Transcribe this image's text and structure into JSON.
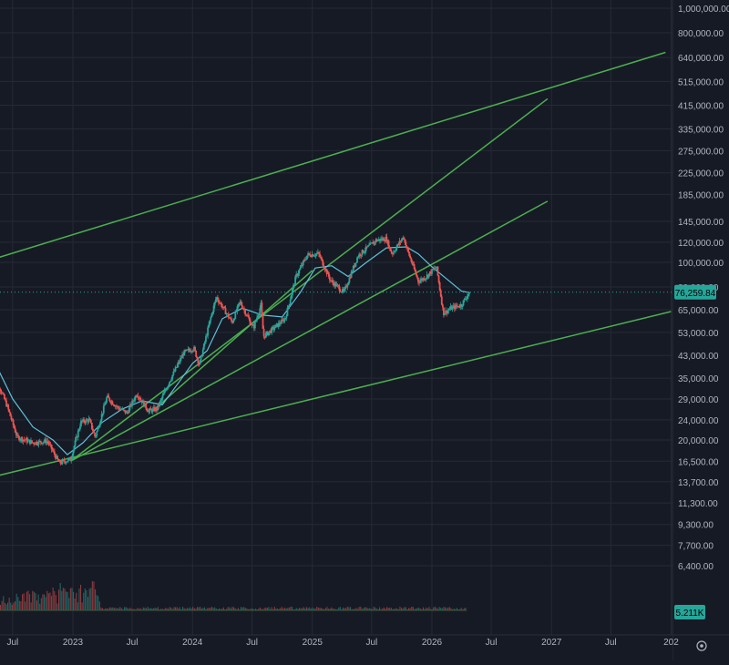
{
  "chart_data": {
    "type": "line",
    "scale": "log",
    "grid": true,
    "price_axis_labels": [
      "1,000,000.00",
      "800,000.00",
      "640,000.00",
      "515,000.00",
      "415,000.00",
      "335,000.00",
      "275,000.00",
      "225,000.00",
      "185,000.00",
      "145,000.00",
      "120,000.00",
      "100,000.00",
      "80,000.00",
      "65,000.00",
      "53,000.00",
      "43,000.00",
      "35,000.00",
      "29,000.00",
      "24,000.00",
      "20,000.00",
      "16,500.00",
      "13,700.00",
      "11,300.00",
      "9,300.00",
      "7,700.00",
      "6,400.00"
    ],
    "price_axis_values": [
      1000000,
      800000,
      640000,
      515000,
      415000,
      335000,
      275000,
      225000,
      185000,
      145000,
      120000,
      100000,
      80000,
      65000,
      53000,
      43000,
      35000,
      29000,
      24000,
      20000,
      16500,
      13700,
      11300,
      9300,
      7700,
      6400
    ],
    "time_axis_labels": [
      "Jul",
      "2023",
      "Jul",
      "2024",
      "Jul",
      "2025",
      "Jul",
      "2026",
      "Jul",
      "2027",
      "Jul",
      "202"
    ],
    "time_axis_dates": [
      "2022-07-01",
      "2023-01-01",
      "2023-07-01",
      "2024-01-01",
      "2024-07-01",
      "2025-01-01",
      "2025-07-01",
      "2026-01-01",
      "2026-07-01",
      "2027-01-01",
      "2027-07-01",
      "2028-01-01"
    ],
    "last_price_label": "76,259.84",
    "last_price": 76259.84,
    "volume_label": "5.211K",
    "colors": {
      "background": "#161a25",
      "grid": "#262a35",
      "candle_up": "#26a69a",
      "candle_down": "#ef5350",
      "moving_average": "#5ec1d9",
      "trendline": "#4caf50",
      "price_tag": "#26a69a",
      "axis_text": "#b2b5be"
    },
    "price_path": [
      [
        "2022-05-01",
        38000
      ],
      [
        "2022-06-15",
        27000
      ],
      [
        "2022-07-15",
        20500
      ],
      [
        "2022-09-01",
        19500
      ],
      [
        "2022-10-15",
        19800
      ],
      [
        "2022-11-20",
        16200
      ],
      [
        "2022-12-25",
        16800
      ],
      [
        "2023-01-25",
        23500
      ],
      [
        "2023-02-20",
        24000
      ],
      [
        "2023-03-10",
        20500
      ],
      [
        "2023-04-15",
        29500
      ],
      [
        "2023-05-15",
        27000
      ],
      [
        "2023-06-15",
        25500
      ],
      [
        "2023-07-15",
        30500
      ],
      [
        "2023-08-20",
        26000
      ],
      [
        "2023-09-15",
        26500
      ],
      [
        "2023-10-25",
        34500
      ],
      [
        "2023-12-05",
        44000
      ],
      [
        "2024-01-05",
        46000
      ],
      [
        "2024-01-22",
        39500
      ],
      [
        "2024-02-25",
        60000
      ],
      [
        "2024-03-14",
        73000
      ],
      [
        "2024-05-01",
        58000
      ],
      [
        "2024-05-25",
        70000
      ],
      [
        "2024-07-05",
        55000
      ],
      [
        "2024-07-28",
        68000
      ],
      [
        "2024-08-05",
        51000
      ],
      [
        "2024-10-10",
        60000
      ],
      [
        "2024-11-12",
        88000
      ],
      [
        "2024-12-17",
        107000
      ],
      [
        "2025-01-20",
        108000
      ],
      [
        "2025-02-25",
        85000
      ],
      [
        "2025-04-07",
        76000
      ],
      [
        "2025-05-20",
        106000
      ],
      [
        "2025-07-14",
        122000
      ],
      [
        "2025-08-14",
        124000
      ],
      [
        "2025-09-01",
        108000
      ],
      [
        "2025-10-06",
        126000
      ],
      [
        "2025-10-20",
        110000
      ],
      [
        "2025-11-21",
        84000
      ],
      [
        "2025-12-15",
        88000
      ],
      [
        "2026-01-15",
        96000
      ],
      [
        "2026-02-05",
        63000
      ],
      [
        "2026-03-01",
        66000
      ],
      [
        "2026-04-01",
        68000
      ],
      [
        "2026-04-25",
        76259.84
      ]
    ],
    "moving_average": [
      [
        "2022-05-01",
        42000
      ],
      [
        "2022-07-01",
        29000
      ],
      [
        "2022-09-01",
        22500
      ],
      [
        "2022-11-01",
        20000
      ],
      [
        "2022-12-15",
        17500
      ],
      [
        "2023-02-01",
        19500
      ],
      [
        "2023-04-01",
        23500
      ],
      [
        "2023-06-01",
        26500
      ],
      [
        "2023-08-01",
        28500
      ],
      [
        "2023-10-01",
        27500
      ],
      [
        "2023-11-15",
        33000
      ],
      [
        "2024-01-01",
        40000
      ],
      [
        "2024-02-15",
        45000
      ],
      [
        "2024-04-01",
        60000
      ],
      [
        "2024-06-01",
        66000
      ],
      [
        "2024-08-01",
        62000
      ],
      [
        "2024-10-01",
        61000
      ],
      [
        "2024-11-25",
        76000
      ],
      [
        "2025-01-10",
        95000
      ],
      [
        "2025-03-01",
        97000
      ],
      [
        "2025-04-20",
        88000
      ],
      [
        "2025-06-15",
        100000
      ],
      [
        "2025-08-15",
        114000
      ],
      [
        "2025-10-15",
        115000
      ],
      [
        "2025-11-20",
        108000
      ],
      [
        "2026-01-01",
        96000
      ],
      [
        "2026-02-15",
        86000
      ],
      [
        "2026-04-01",
        77000
      ],
      [
        "2026-04-25",
        76000
      ]
    ],
    "trendlines": [
      {
        "from": [
          "2022-04-01",
          14000
        ],
        "to": [
          "2028-01-01",
          64000
        ]
      },
      {
        "from": [
          "2022-04-01",
          100000
        ],
        "to": [
          "2027-12-15",
          670000
        ]
      },
      {
        "from": [
          "2022-12-25",
          16500
        ],
        "to": [
          "2026-12-20",
          440000
        ]
      },
      {
        "from": [
          "2022-12-25",
          16500
        ],
        "to": [
          "2026-12-20",
          174000
        ]
      },
      {
        "from": [
          "2023-09-01",
          26000
        ],
        "to": [
          "2025-01-01",
          93000
        ]
      }
    ],
    "volume_profile": "low"
  }
}
